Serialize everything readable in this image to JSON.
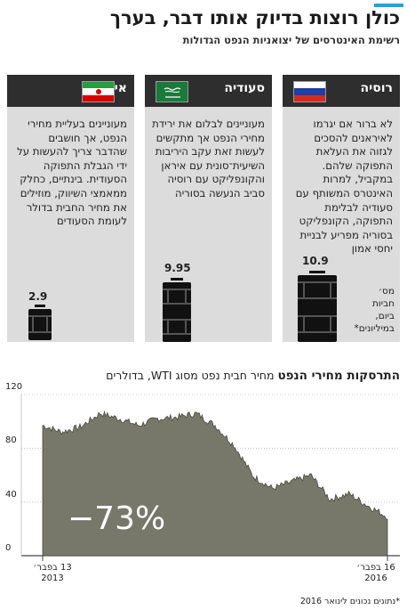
{
  "header": {
    "title": "כולן רוצות בדיוק אותו דבר, בערך",
    "subtitle": "רשימת האינטרסים של יצואניות הנפט הגדולות",
    "accent_color": "#1aa7e0"
  },
  "unit_note": "מס׳\nחביות\nביום,\nבמיליונים*",
  "countries": [
    {
      "name": "רוסיה",
      "flag": "russia-flag-icon",
      "text": "לא ברור אם יגרמו לאיראנים להסכים לגזוה את העלאת התפוקה שלהם. במקביל, למרות האינטרס המשותף עם סעודיה לבלימת התפוקה, הקונפליקט בסוריה מפריע לבניית יחסי אמון",
      "value": "10.9"
    },
    {
      "name": "סעודיה",
      "flag": "saudi-flag-icon",
      "text": "מעוניינים לבלום את ירידת מחירי הנפט אך מתקשים לעשות זאת עקב היריבות השיעית־סונית עם איראן והקונפליקט עם רוסיה סביב הנעשה בסוריה",
      "value": "9.95"
    },
    {
      "name": "איראן",
      "flag": "iran-flag-icon",
      "text": "מעוניינים בעליית מחירי הנפט, אך חושבים שהדבר צריך להעשות על ידי הגבלת התפוקה הסעודית. בינתיים, כחלק ממאמצי השיווק, מוזילים את מחיר החבית בדולר לעומת הסעודים",
      "value": "2.9"
    }
  ],
  "chart": {
    "title_bold": "התרסקות מחירי הנפט",
    "title_rest": "מחיר חבית נפט מסוג WTI, בדולרים",
    "change_label": "−73%",
    "start_label": "13 בפבר׳ 2013",
    "start_label_line1": "13 בפבר׳",
    "start_label_line2": "2013",
    "end_label_line1": "16 בפבר׳",
    "end_label_line2": "2016",
    "fill_color": "#77776a"
  },
  "footnote": "*נתונים נכונים לינואר 2016",
  "chart_data": {
    "type": "area",
    "title": "התרסקות מחירי הנפט",
    "subtitle": "מחיר חבית נפט מסוג WTI, בדולרים",
    "ylim": [
      0,
      120
    ],
    "yticks": [
      0,
      40,
      80,
      120
    ],
    "grid": true,
    "x_start": "2013-02-13",
    "x_end": "2016-02-16",
    "x": [
      "2013-02",
      "2013-04",
      "2013-06",
      "2013-08",
      "2013-10",
      "2013-12",
      "2014-02",
      "2014-04",
      "2014-06",
      "2014-08",
      "2014-10",
      "2014-12",
      "2015-02",
      "2015-04",
      "2015-06",
      "2015-08",
      "2015-10",
      "2015-12",
      "2016-02"
    ],
    "values": [
      97,
      92,
      96,
      106,
      102,
      97,
      102,
      103,
      106,
      97,
      82,
      59,
      50,
      55,
      60,
      42,
      46,
      37,
      29
    ]
  }
}
